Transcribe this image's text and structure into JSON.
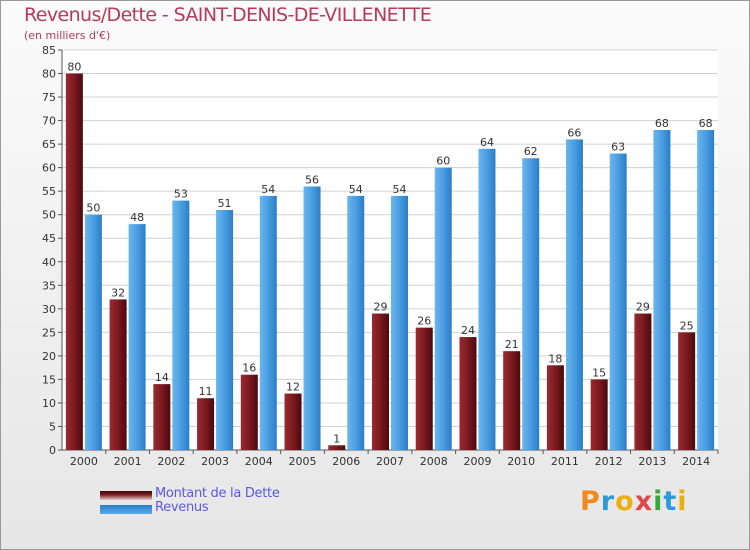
{
  "title": "Revenus/Dette - SAINT-DENIS-DE-VILLENETTE",
  "subtitle": "(en milliers d'€)",
  "legend": {
    "dette_label": "Montant de la Dette",
    "revenus_label": "Revenus"
  },
  "logo": "Proxiti",
  "colors": {
    "dette": "#7a1a1f",
    "revenus": "#4a9de0",
    "title": "#b73a5c",
    "legend_text": "#5a5ae0"
  },
  "chart_data": {
    "type": "bar",
    "categories": [
      "2000",
      "2001",
      "2002",
      "2003",
      "2004",
      "2005",
      "2006",
      "2007",
      "2008",
      "2009",
      "2010",
      "2011",
      "2012",
      "2013",
      "2014"
    ],
    "series": [
      {
        "name": "Montant de la Dette",
        "values": [
          80,
          32,
          14,
          11,
          16,
          12,
          1,
          29,
          26,
          24,
          21,
          18,
          15,
          29,
          25
        ]
      },
      {
        "name": "Revenus",
        "values": [
          50,
          48,
          53,
          51,
          54,
          56,
          54,
          54,
          60,
          64,
          62,
          66,
          63,
          68,
          68
        ]
      }
    ],
    "title": "Revenus/Dette - SAINT-DENIS-DE-VILLENETTE",
    "ylabel": "(en milliers d'€)",
    "ylim": [
      0,
      85
    ],
    "ytick_step": 5,
    "grid": true,
    "legend_position": "bottom-left",
    "data_labels": true
  }
}
